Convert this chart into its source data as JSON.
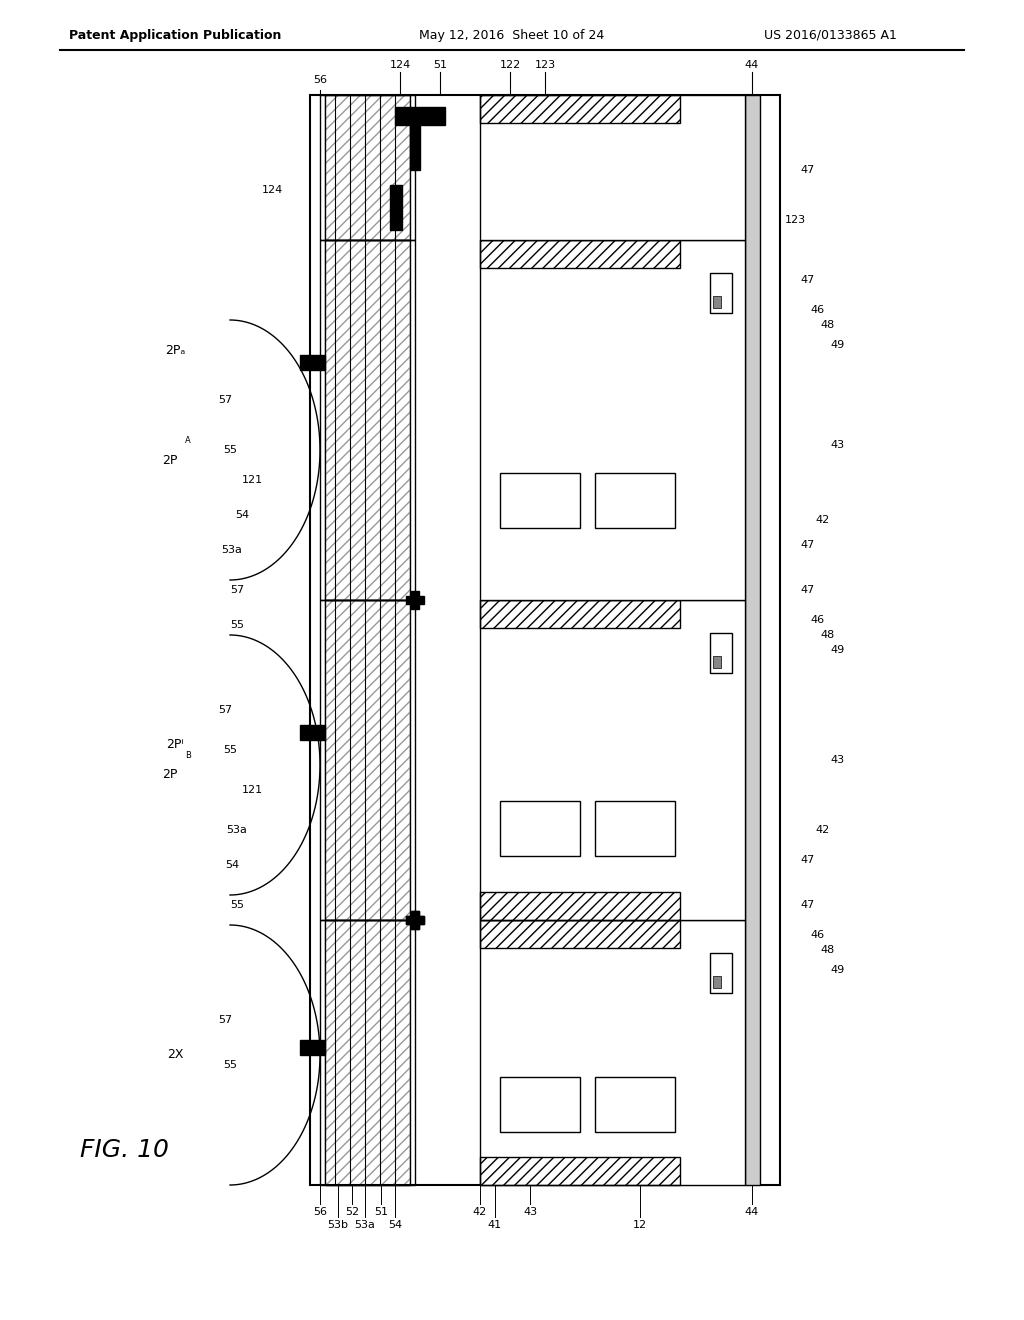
{
  "title_left": "Patent Application Publication",
  "title_mid": "May 12, 2016  Sheet 10 of 24",
  "title_right": "US 2016/0133865 A1",
  "fig_label": "FIG. 10",
  "bg_color": "#ffffff",
  "line_color": "#000000",
  "hatch_color": "#888888",
  "header_fontsize": 9,
  "label_fontsize": 8,
  "fig_fontsize": 18
}
